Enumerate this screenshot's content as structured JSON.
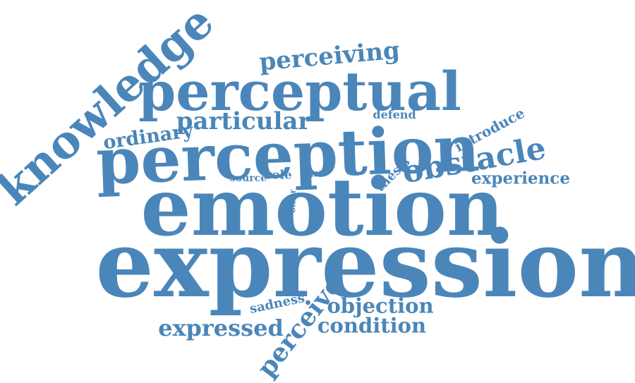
{
  "word_cloud": {
    "color": "#4a86b9",
    "words": {
      "knowledge": "knowledge",
      "perceiving": "perceiving",
      "perceptual": "perceptual",
      "particular": "particular",
      "ordinary": "ordinary",
      "defend": "defend",
      "introduce": "introduce",
      "perception": "perception",
      "obstacle": "obstacle",
      "thesis": "thesis",
      "experience": "experience",
      "source": "source",
      "role": "role",
      "part": "part",
      "other": "other",
      "emotion": "emotion",
      "expression": "expression",
      "sadness": "sadness",
      "perceive": "perceive",
      "objection": "objection",
      "expressed": "expressed",
      "condition": "condition"
    }
  }
}
